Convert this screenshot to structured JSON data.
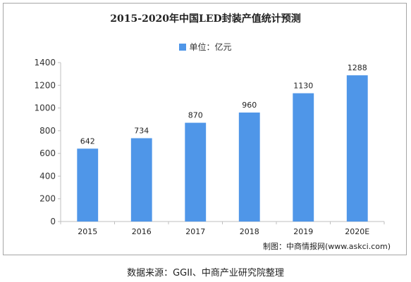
{
  "chart_data": {
    "type": "bar",
    "title": "2015-2020年中国LED封装产值统计预测",
    "categories": [
      "2015",
      "2016",
      "2017",
      "2018",
      "2019",
      "2020E"
    ],
    "series": [
      {
        "name": "单位：亿元",
        "values": [
          642,
          734,
          870,
          960,
          1130,
          1288
        ]
      }
    ],
    "ylim": [
      0,
      1400
    ],
    "yticks": [
      0,
      200,
      400,
      600,
      800,
      1000,
      1200,
      1400
    ],
    "xlabel": "",
    "ylabel": "",
    "grid": false,
    "legend_position": "top-center",
    "bar_color": "#4f96e8",
    "axis_color": "#bfbfbf"
  },
  "credit": "制图：中商情报网(www.askci.com)",
  "source": "数据来源：GGII、中商产业研究院整理"
}
